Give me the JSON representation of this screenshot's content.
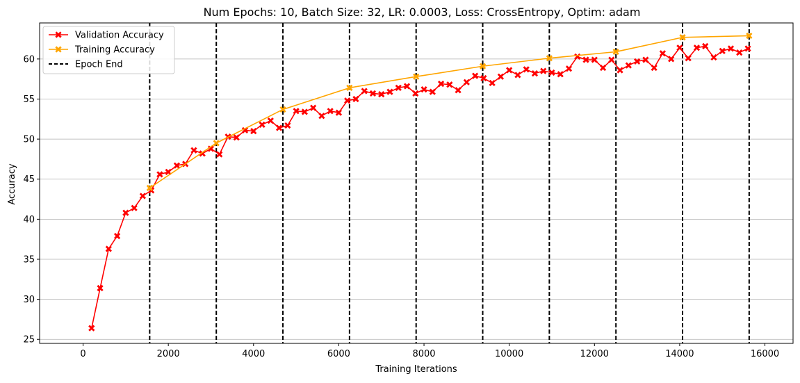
{
  "chart_data": {
    "type": "line",
    "title": "Num Epochs: 10, Batch Size: 32, LR: 0.0003, Loss: CrossEntropy, Optim: adam",
    "xlabel": "Training Iterations",
    "ylabel": "Accuracy",
    "xlim": [
      -1020,
      16660
    ],
    "ylim": [
      24.5,
      64.5
    ],
    "xticks": [
      0,
      2000,
      4000,
      6000,
      8000,
      10000,
      12000,
      14000,
      16000
    ],
    "yticks": [
      25,
      30,
      35,
      40,
      45,
      50,
      55,
      60
    ],
    "grid": "y-major",
    "legend_position": "upper-left",
    "series": [
      {
        "name": "Validation Accuracy",
        "color": "#ff0000",
        "marker": "x-filled",
        "x": [
          200,
          400,
          600,
          800,
          1000,
          1200,
          1400,
          1600,
          1800,
          2000,
          2200,
          2400,
          2600,
          2800,
          3000,
          3200,
          3400,
          3600,
          3800,
          4000,
          4200,
          4400,
          4600,
          4800,
          5000,
          5200,
          5400,
          5600,
          5800,
          6000,
          6200,
          6400,
          6600,
          6800,
          7000,
          7200,
          7400,
          7600,
          7800,
          8000,
          8200,
          8400,
          8600,
          8800,
          9000,
          9200,
          9400,
          9600,
          9800,
          10000,
          10200,
          10400,
          10600,
          10800,
          11000,
          11200,
          11400,
          11600,
          11800,
          12000,
          12200,
          12400,
          12600,
          12800,
          13000,
          13200,
          13400,
          13600,
          13800,
          14000,
          14200,
          14400,
          14600,
          14800,
          15000,
          15200,
          15400,
          15600
        ],
        "values": [
          26.4,
          31.4,
          36.3,
          37.9,
          40.8,
          41.4,
          42.9,
          43.6,
          45.6,
          45.9,
          46.7,
          46.9,
          48.6,
          48.2,
          48.8,
          48.1,
          50.3,
          50.2,
          51.1,
          51.0,
          51.8,
          52.3,
          51.4,
          51.7,
          53.5,
          53.4,
          53.9,
          52.9,
          53.5,
          53.3,
          54.8,
          55.0,
          56.0,
          55.7,
          55.6,
          55.9,
          56.4,
          56.6,
          55.7,
          56.2,
          55.9,
          56.9,
          56.8,
          56.1,
          57.1,
          57.9,
          57.6,
          57.0,
          57.8,
          58.6,
          58.0,
          58.7,
          58.2,
          58.5,
          58.3,
          58.1,
          58.8,
          60.3,
          59.9,
          59.9,
          58.9,
          59.9,
          58.6,
          59.2,
          59.7,
          59.9,
          58.9,
          60.7,
          60.0,
          61.4,
          60.1,
          61.4,
          61.6,
          60.2,
          61.0,
          61.3,
          60.8,
          61.3
        ]
      },
      {
        "name": "Training Accuracy",
        "color": "#ffa500",
        "marker": "x-filled",
        "x": [
          1563,
          3126,
          4689,
          6252,
          7815,
          9378,
          10941,
          12504,
          14067,
          15630
        ],
        "values": [
          43.9,
          49.5,
          53.7,
          56.4,
          57.8,
          59.1,
          60.1,
          60.9,
          62.7,
          62.9
        ]
      },
      {
        "name": "Epoch End",
        "color": "#000000",
        "style": "dashed-vertical",
        "x": [
          1563,
          3126,
          4689,
          6252,
          7815,
          9378,
          10941,
          12504,
          14067,
          15630
        ]
      }
    ]
  }
}
